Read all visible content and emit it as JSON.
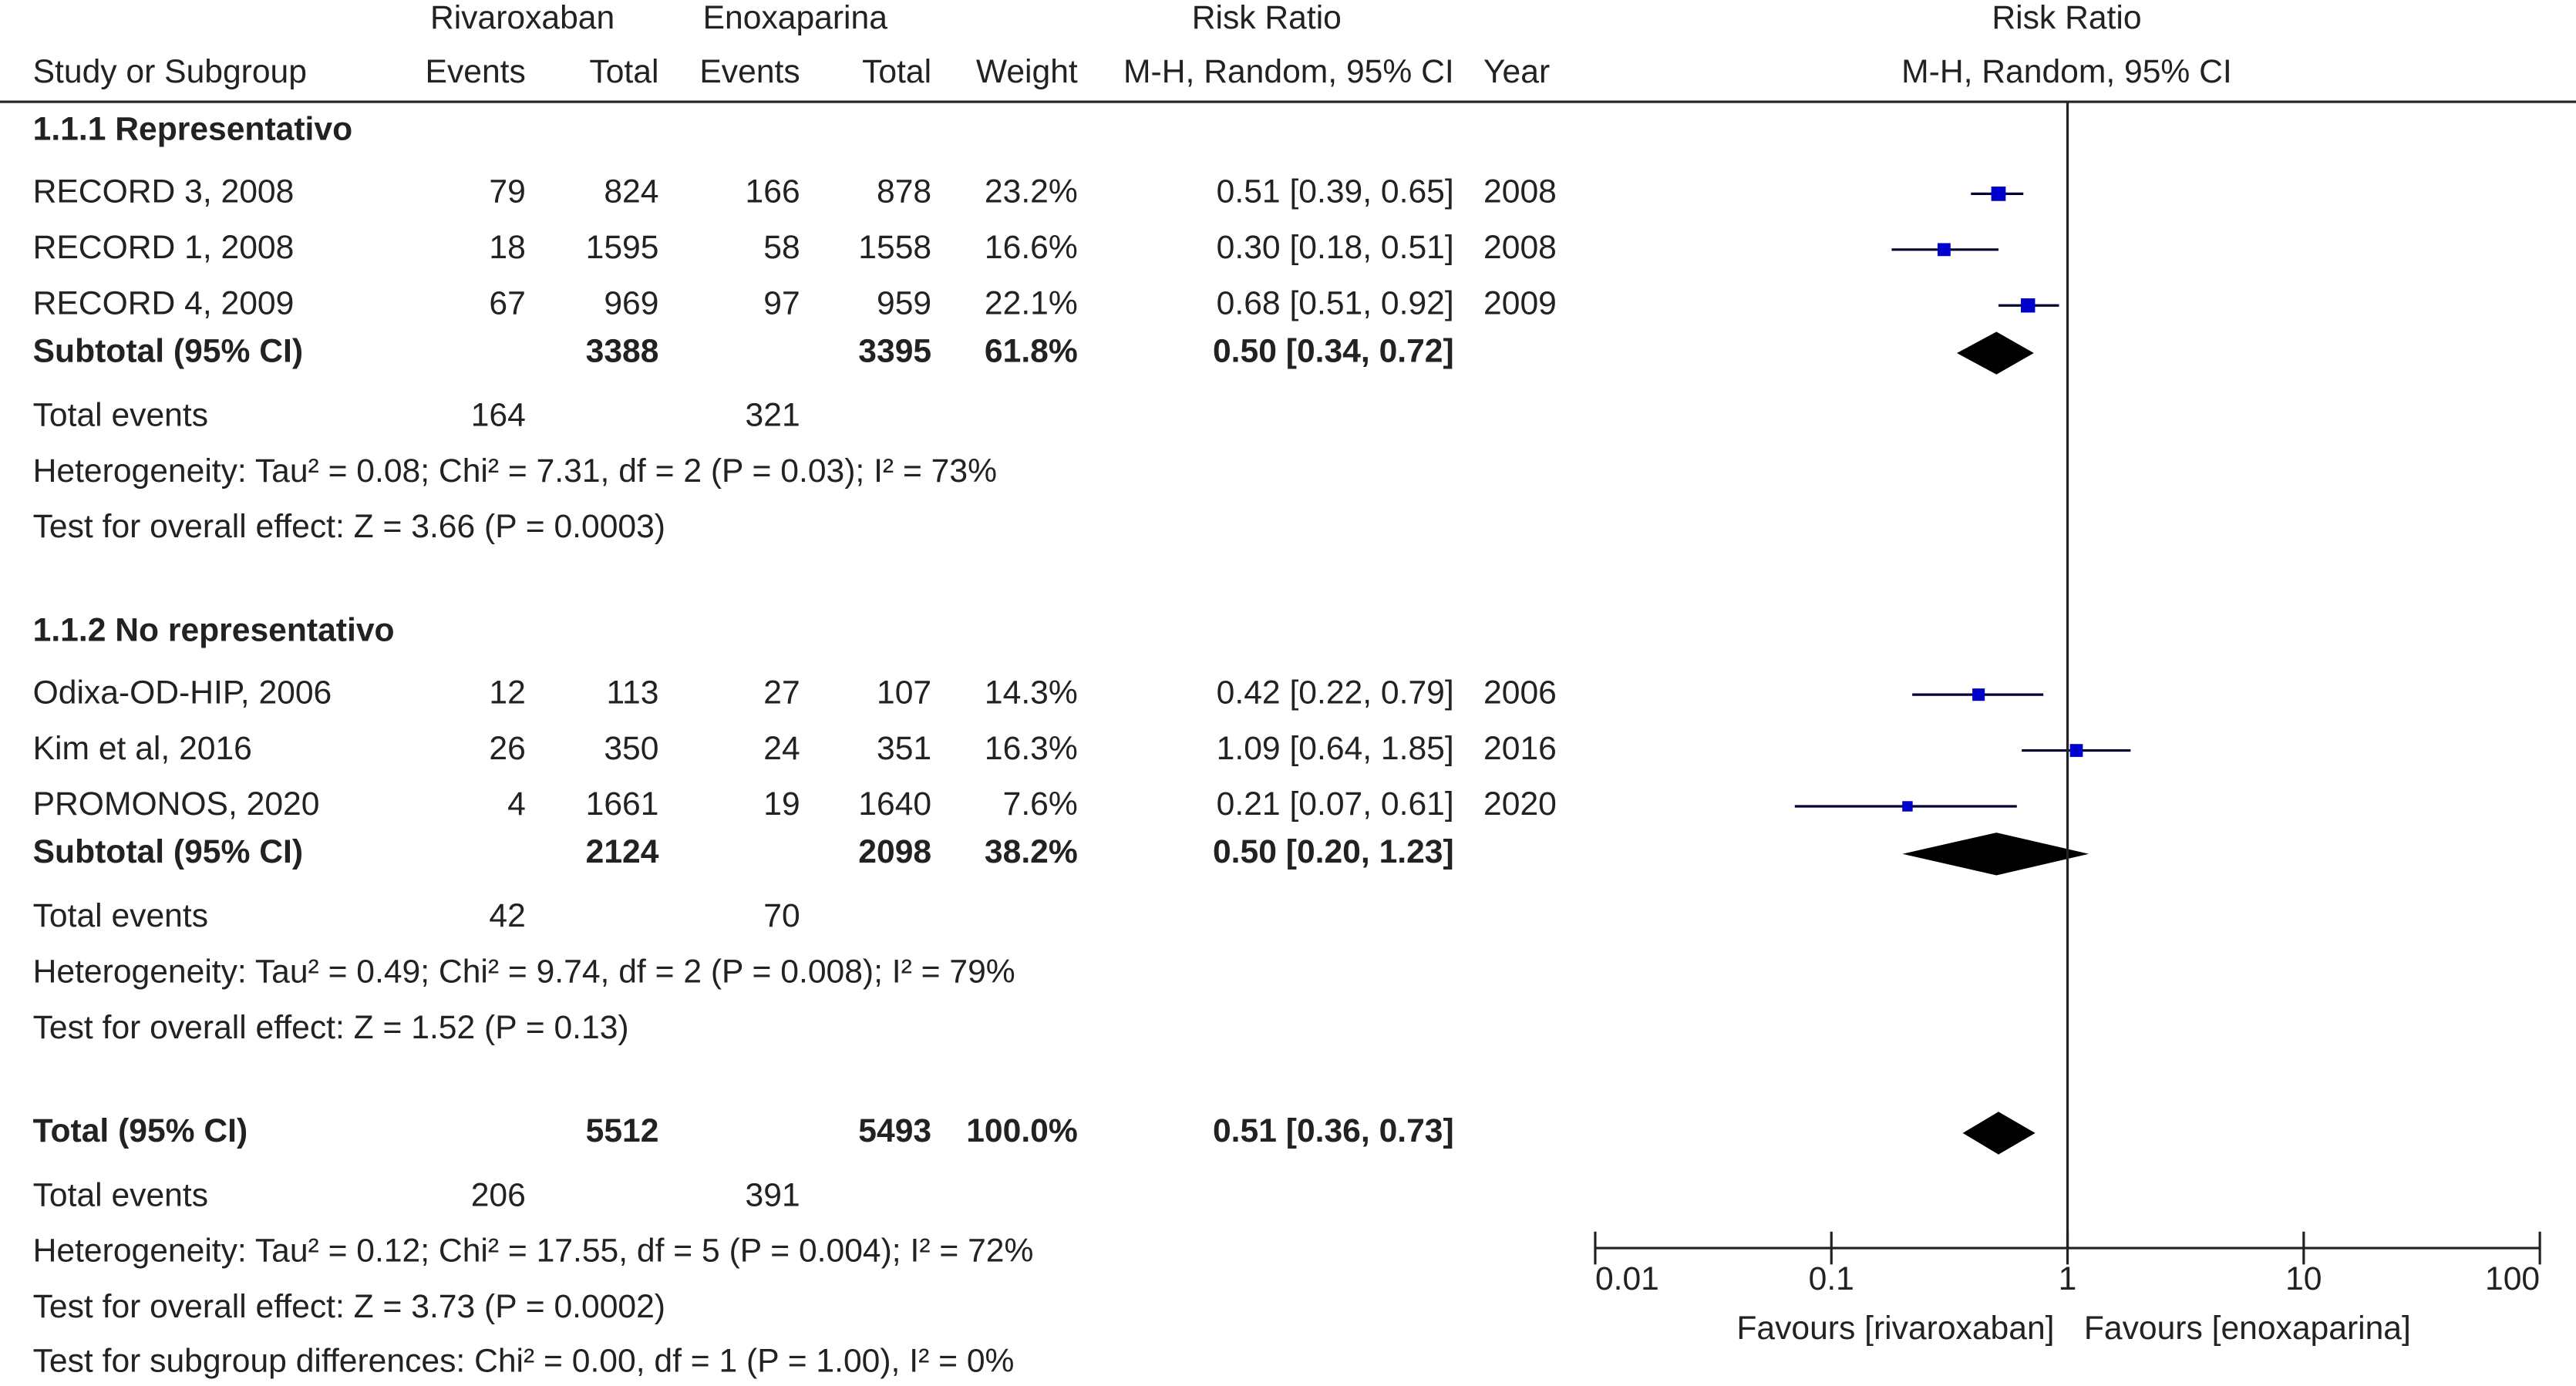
{
  "chart_data": {
    "type": "forest",
    "headers": {
      "group1": "Rivaroxaban",
      "group2": "Enoxaparina",
      "effect": "Risk Ratio",
      "plot_title": "Risk Ratio",
      "study": "Study or Subgroup",
      "events1": "Events",
      "total1": "Total",
      "events2": "Events",
      "total2": "Total",
      "weight": "Weight",
      "method": "M-H, Random, 95% CI",
      "year": "Year",
      "plot_method": "M-H, Random, 95% CI"
    },
    "subgroups": [
      {
        "title": "1.1.1 Representativo",
        "studies": [
          {
            "name": "RECORD 3, 2008",
            "events1": 79,
            "total1": 824,
            "events2": 166,
            "total2": 878,
            "weight": 23.2,
            "weight_label": "23.2%",
            "ci_label": "0.51 [0.39, 0.65]",
            "year": 2008,
            "rr": 0.51,
            "lo": 0.39,
            "hi": 0.65
          },
          {
            "name": "RECORD 1, 2008",
            "events1": 18,
            "total1": 1595,
            "events2": 58,
            "total2": 1558,
            "weight": 16.6,
            "weight_label": "16.6%",
            "ci_label": "0.30 [0.18, 0.51]",
            "year": 2008,
            "rr": 0.3,
            "lo": 0.18,
            "hi": 0.51
          },
          {
            "name": "RECORD 4, 2009",
            "events1": 67,
            "total1": 969,
            "events2": 97,
            "total2": 959,
            "weight": 22.1,
            "weight_label": "22.1%",
            "ci_label": "0.68 [0.51, 0.92]",
            "year": 2009,
            "rr": 0.68,
            "lo": 0.51,
            "hi": 0.92
          }
        ],
        "subtotal": {
          "label": "Subtotal (95% CI)",
          "total1": 3388,
          "total2": 3395,
          "weight": 61.8,
          "weight_label": "61.8%",
          "ci_label": "0.50 [0.34, 0.72]",
          "rr": 0.5,
          "lo": 0.34,
          "hi": 0.72
        },
        "total_events": {
          "label": "Total events",
          "events1": 164,
          "events2": 321
        },
        "heterogeneity": "Heterogeneity: Tau² = 0.08; Chi² = 7.31, df = 2 (P = 0.03); I² = 73%",
        "overall": "Test for overall effect: Z = 3.66 (P = 0.0003)"
      },
      {
        "title": "1.1.2 No representativo",
        "studies": [
          {
            "name": "Odixa-OD-HIP, 2006",
            "events1": 12,
            "total1": 113,
            "events2": 27,
            "total2": 107,
            "weight": 14.3,
            "weight_label": "14.3%",
            "ci_label": "0.42 [0.22, 0.79]",
            "year": 2006,
            "rr": 0.42,
            "lo": 0.22,
            "hi": 0.79
          },
          {
            "name": "Kim et al, 2016",
            "events1": 26,
            "total1": 350,
            "events2": 24,
            "total2": 351,
            "weight": 16.3,
            "weight_label": "16.3%",
            "ci_label": "1.09 [0.64, 1.85]",
            "year": 2016,
            "rr": 1.09,
            "lo": 0.64,
            "hi": 1.85
          },
          {
            "name": "PROMONOS, 2020",
            "events1": 4,
            "total1": 1661,
            "events2": 19,
            "total2": 1640,
            "weight": 7.6,
            "weight_label": "7.6%",
            "ci_label": "0.21 [0.07, 0.61]",
            "year": 2020,
            "rr": 0.21,
            "lo": 0.07,
            "hi": 0.61
          }
        ],
        "subtotal": {
          "label": "Subtotal (95% CI)",
          "total1": 2124,
          "total2": 2098,
          "weight": 38.2,
          "weight_label": "38.2%",
          "ci_label": "0.50 [0.20, 1.23]",
          "rr": 0.5,
          "lo": 0.2,
          "hi": 1.23
        },
        "total_events": {
          "label": "Total events",
          "events1": 42,
          "events2": 70
        },
        "heterogeneity": "Heterogeneity: Tau² = 0.49; Chi² = 9.74, df = 2 (P = 0.008); I² = 79%",
        "overall": "Test for overall effect: Z = 1.52 (P = 0.13)"
      }
    ],
    "total": {
      "label": "Total (95% CI)",
      "total1": 5512,
      "total2": 5493,
      "weight": 100,
      "weight_label": "100.0%",
      "ci_label": "0.51 [0.36, 0.73]",
      "rr": 0.51,
      "lo": 0.36,
      "hi": 0.73
    },
    "total_events": {
      "label": "Total events",
      "events1": 206,
      "events2": 391
    },
    "heterogeneity": "Heterogeneity: Tau² = 0.12; Chi² = 17.55, df = 5 (P = 0.004); I² = 72%",
    "overall": "Test for overall effect: Z = 3.73 (P = 0.0002)",
    "subgroup_test": "Test for subgroup differences: Chi² = 0.00, df = 1 (P = 1.00), I² = 0%",
    "log_scale": true,
    "xlim": [
      0.01,
      100
    ],
    "xticks": [
      0.01,
      0.1,
      1,
      10,
      100
    ],
    "favours_left": "Favours [rivaroxaban]",
    "favours_right": "Favours [enoxaparina]",
    "color": "#0000cc",
    "diamond_color": "#000000"
  }
}
